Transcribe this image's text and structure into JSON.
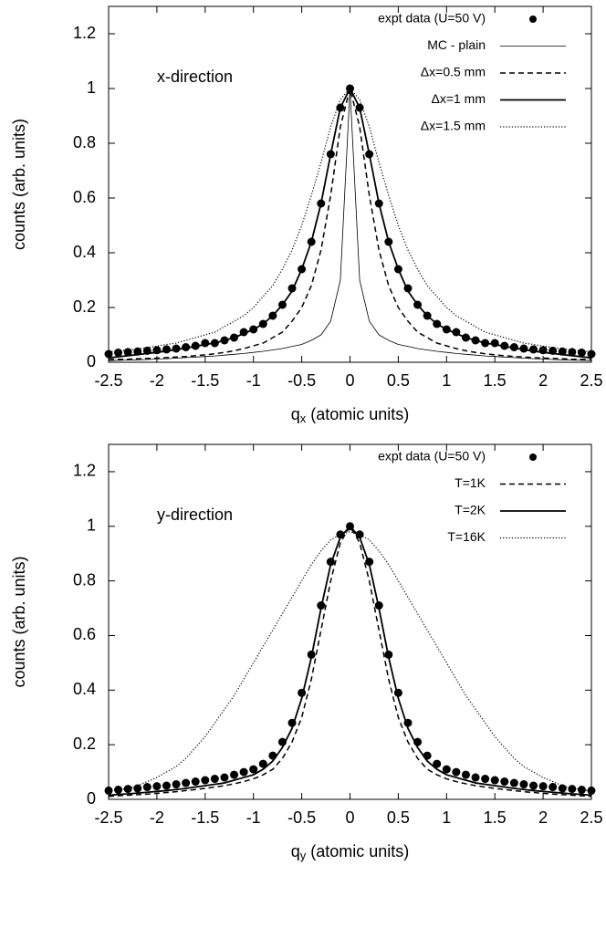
{
  "chart_data": [
    {
      "type": "line",
      "annotation": "x-direction",
      "xlabel": [
        "q",
        "x",
        " (atomic units)"
      ],
      "ylabel": "counts (arb. units)",
      "xlim": [
        -2.5,
        2.5
      ],
      "ylim": [
        0,
        1.3
      ],
      "xticks": [
        -2.5,
        -2,
        -1.5,
        -1,
        -0.5,
        0,
        0.5,
        1,
        1.5,
        2,
        2.5
      ],
      "yticks": [
        0,
        0.2,
        0.4,
        0.6,
        0.8,
        1,
        1.2
      ],
      "legend": "top-right",
      "x": [
        -2.5,
        -2.4,
        -2.3,
        -2.2,
        -2.1,
        -2,
        -1.9,
        -1.8,
        -1.7,
        -1.6,
        -1.5,
        -1.4,
        -1.3,
        -1.2,
        -1.1,
        -1,
        -0.9,
        -0.8,
        -0.7,
        -0.6,
        -0.5,
        -0.4,
        -0.3,
        -0.2,
        -0.1,
        0,
        0.1,
        0.2,
        0.3,
        0.4,
        0.5,
        0.6,
        0.7,
        0.8,
        0.9,
        1,
        1.1,
        1.2,
        1.3,
        1.4,
        1.5,
        1.6,
        1.7,
        1.8,
        1.9,
        2,
        2.1,
        2.2,
        2.3,
        2.4,
        2.5
      ],
      "series": [
        {
          "name": "expt data (U=50 V)",
          "color": "#000000",
          "style": "points",
          "values": [
            0.03,
            0.035,
            0.037,
            0.039,
            0.042,
            0.044,
            0.047,
            0.05,
            0.055,
            0.06,
            0.07,
            0.07,
            0.08,
            0.09,
            0.11,
            0.12,
            0.14,
            0.17,
            0.21,
            0.27,
            0.34,
            0.44,
            0.58,
            0.76,
            0.93,
            1,
            0.93,
            0.76,
            0.58,
            0.44,
            0.34,
            0.27,
            0.21,
            0.17,
            0.14,
            0.12,
            0.11,
            0.09,
            0.08,
            0.07,
            0.07,
            0.06,
            0.055,
            0.05,
            0.047,
            0.044,
            0.042,
            0.039,
            0.037,
            0.035,
            0.03
          ]
        },
        {
          "name": "MC - plain",
          "color": "#000000",
          "style": "thin",
          "values": [
            0.006,
            0.007,
            0.008,
            0.009,
            0.01,
            0.012,
            0.013,
            0.015,
            0.017,
            0.019,
            0.021,
            0.023,
            0.026,
            0.029,
            0.032,
            0.036,
            0.04,
            0.045,
            0.05,
            0.058,
            0.065,
            0.08,
            0.1,
            0.15,
            0.3,
            1,
            0.3,
            0.15,
            0.1,
            0.08,
            0.065,
            0.058,
            0.05,
            0.045,
            0.04,
            0.036,
            0.032,
            0.029,
            0.026,
            0.023,
            0.021,
            0.019,
            0.017,
            0.015,
            0.013,
            0.012,
            0.01,
            0.009,
            0.008,
            0.007,
            0.006
          ]
        },
        {
          "name": "Δx=0.5 mm",
          "color": "#000000",
          "style": "dashed",
          "values": [
            0.01,
            0.011,
            0.011,
            0.013,
            0.014,
            0.015,
            0.017,
            0.019,
            0.021,
            0.024,
            0.027,
            0.031,
            0.036,
            0.042,
            0.05,
            0.06,
            0.07,
            0.09,
            0.11,
            0.15,
            0.2,
            0.28,
            0.41,
            0.61,
            0.86,
            1,
            0.86,
            0.61,
            0.41,
            0.28,
            0.2,
            0.15,
            0.11,
            0.09,
            0.07,
            0.06,
            0.05,
            0.042,
            0.036,
            0.031,
            0.027,
            0.024,
            0.021,
            0.019,
            0.017,
            0.015,
            0.014,
            0.013,
            0.011,
            0.011,
            0.01
          ]
        },
        {
          "name": "Δx=1 mm",
          "color": "#000000",
          "style": "solid",
          "values": [
            0.016,
            0.02,
            0.024,
            0.028,
            0.032,
            0.036,
            0.041,
            0.046,
            0.052,
            0.058,
            0.065,
            0.07,
            0.08,
            0.09,
            0.105,
            0.12,
            0.14,
            0.17,
            0.21,
            0.26,
            0.34,
            0.44,
            0.58,
            0.76,
            0.93,
            1,
            0.93,
            0.76,
            0.58,
            0.44,
            0.34,
            0.26,
            0.21,
            0.17,
            0.14,
            0.12,
            0.105,
            0.09,
            0.08,
            0.07,
            0.065,
            0.058,
            0.052,
            0.046,
            0.041,
            0.036,
            0.032,
            0.028,
            0.024,
            0.02,
            0.016
          ]
        },
        {
          "name": "Δx=1.5 mm",
          "color": "#000000",
          "style": "dotted",
          "values": [
            0.038,
            0.042,
            0.045,
            0.049,
            0.054,
            0.059,
            0.065,
            0.07,
            0.08,
            0.09,
            0.1,
            0.11,
            0.13,
            0.15,
            0.17,
            0.2,
            0.24,
            0.28,
            0.34,
            0.41,
            0.5,
            0.61,
            0.73,
            0.86,
            0.96,
            1,
            0.96,
            0.86,
            0.73,
            0.61,
            0.5,
            0.41,
            0.34,
            0.28,
            0.24,
            0.2,
            0.17,
            0.15,
            0.13,
            0.11,
            0.1,
            0.09,
            0.08,
            0.07,
            0.065,
            0.059,
            0.054,
            0.049,
            0.045,
            0.042,
            0.038
          ]
        }
      ]
    },
    {
      "type": "line",
      "annotation": "y-direction",
      "xlabel": [
        "q",
        "y",
        " (atomic units)"
      ],
      "ylabel": "counts (arb. units)",
      "xlim": [
        -2.5,
        2.5
      ],
      "ylim": [
        0,
        1.3
      ],
      "xticks": [
        -2.5,
        -2,
        -1.5,
        -1,
        -0.5,
        0,
        0.5,
        1,
        1.5,
        2,
        2.5
      ],
      "yticks": [
        0,
        0.2,
        0.4,
        0.6,
        0.8,
        1,
        1.2
      ],
      "legend": "top-right",
      "x": [
        -2.5,
        -2.4,
        -2.3,
        -2.2,
        -2.1,
        -2,
        -1.9,
        -1.8,
        -1.7,
        -1.6,
        -1.5,
        -1.4,
        -1.3,
        -1.2,
        -1.1,
        -1,
        -0.9,
        -0.8,
        -0.7,
        -0.6,
        -0.5,
        -0.4,
        -0.3,
        -0.2,
        -0.1,
        0,
        0.1,
        0.2,
        0.3,
        0.4,
        0.5,
        0.6,
        0.7,
        0.8,
        0.9,
        1,
        1.1,
        1.2,
        1.3,
        1.4,
        1.5,
        1.6,
        1.7,
        1.8,
        1.9,
        2,
        2.1,
        2.2,
        2.3,
        2.4,
        2.5
      ],
      "series": [
        {
          "name": "expt data (U=50 V)",
          "color": "#000000",
          "style": "points",
          "values": [
            0.032,
            0.035,
            0.038,
            0.04,
            0.045,
            0.048,
            0.05,
            0.055,
            0.06,
            0.065,
            0.07,
            0.075,
            0.08,
            0.09,
            0.1,
            0.11,
            0.13,
            0.16,
            0.21,
            0.28,
            0.39,
            0.53,
            0.71,
            0.87,
            0.97,
            1,
            0.97,
            0.87,
            0.71,
            0.53,
            0.39,
            0.28,
            0.21,
            0.16,
            0.13,
            0.11,
            0.1,
            0.09,
            0.08,
            0.075,
            0.07,
            0.065,
            0.06,
            0.055,
            0.05,
            0.048,
            0.045,
            0.04,
            0.038,
            0.035,
            0.032
          ]
        },
        {
          "name": "T=1K",
          "color": "#000000",
          "style": "dashed",
          "values": [
            0.011,
            0.013,
            0.015,
            0.017,
            0.019,
            0.022,
            0.025,
            0.028,
            0.032,
            0.036,
            0.04,
            0.045,
            0.05,
            0.057,
            0.065,
            0.075,
            0.09,
            0.11,
            0.15,
            0.21,
            0.3,
            0.44,
            0.62,
            0.8,
            0.94,
            1,
            0.94,
            0.8,
            0.62,
            0.44,
            0.3,
            0.21,
            0.15,
            0.11,
            0.09,
            0.075,
            0.065,
            0.057,
            0.05,
            0.045,
            0.04,
            0.036,
            0.032,
            0.028,
            0.025,
            0.022,
            0.019,
            0.017,
            0.015,
            0.013,
            0.011
          ]
        },
        {
          "name": "T=2K",
          "color": "#000000",
          "style": "solid",
          "values": [
            0.015,
            0.018,
            0.02,
            0.023,
            0.026,
            0.029,
            0.032,
            0.036,
            0.04,
            0.045,
            0.05,
            0.055,
            0.06,
            0.07,
            0.08,
            0.09,
            0.11,
            0.14,
            0.19,
            0.26,
            0.37,
            0.52,
            0.7,
            0.86,
            0.96,
            1,
            0.96,
            0.86,
            0.7,
            0.52,
            0.37,
            0.26,
            0.19,
            0.14,
            0.11,
            0.09,
            0.08,
            0.07,
            0.06,
            0.055,
            0.05,
            0.045,
            0.04,
            0.036,
            0.032,
            0.029,
            0.026,
            0.023,
            0.02,
            0.018,
            0.015
          ]
        },
        {
          "name": "T=16K",
          "color": "#000000",
          "style": "dotted",
          "values": [
            0.03,
            0.035,
            0.04,
            0.05,
            0.065,
            0.08,
            0.1,
            0.12,
            0.15,
            0.19,
            0.23,
            0.28,
            0.33,
            0.38,
            0.44,
            0.5,
            0.56,
            0.62,
            0.68,
            0.74,
            0.8,
            0.86,
            0.91,
            0.95,
            0.97,
            0.98,
            0.97,
            0.95,
            0.91,
            0.86,
            0.8,
            0.74,
            0.68,
            0.62,
            0.56,
            0.5,
            0.44,
            0.38,
            0.33,
            0.28,
            0.23,
            0.19,
            0.15,
            0.12,
            0.1,
            0.08,
            0.065,
            0.05,
            0.04,
            0.035,
            0.03
          ]
        }
      ]
    }
  ]
}
